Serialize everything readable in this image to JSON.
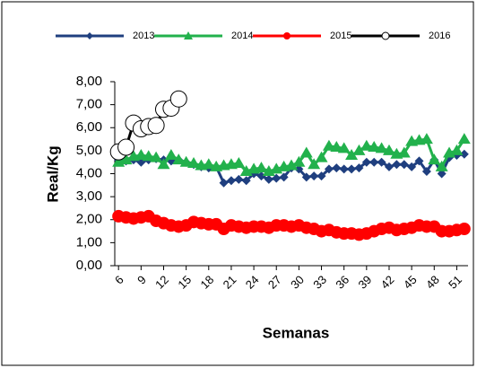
{
  "chart_data": {
    "type": "line",
    "y_label": "Real/Kg",
    "x_label": "Semanas",
    "legend": "top",
    "grid": false,
    "x": [
      6,
      7,
      8,
      9,
      10,
      11,
      12,
      13,
      14,
      15,
      16,
      17,
      18,
      19,
      20,
      21,
      22,
      23,
      24,
      25,
      26,
      27,
      28,
      29,
      30,
      31,
      32,
      33,
      34,
      35,
      36,
      37,
      38,
      39,
      40,
      41,
      42,
      43,
      44,
      45,
      46,
      47,
      48,
      49,
      50,
      51,
      52
    ],
    "xlim": [
      5.5,
      52.5
    ],
    "xticks": [
      6,
      9,
      12,
      15,
      18,
      21,
      24,
      27,
      30,
      33,
      36,
      39,
      42,
      45,
      48,
      51
    ],
    "ylim": [
      0,
      8
    ],
    "yticks": [
      {
        "value": 0,
        "label": "0,00"
      },
      {
        "value": 1,
        "label": "1,00"
      },
      {
        "value": 2,
        "label": "2,00"
      },
      {
        "value": 3,
        "label": "3,00"
      },
      {
        "value": 4,
        "label": "4,00"
      },
      {
        "value": 5,
        "label": "5,00"
      },
      {
        "value": 6,
        "label": "6,00"
      },
      {
        "value": 7,
        "label": "7,00"
      },
      {
        "value": 8,
        "label": "8,00"
      }
    ],
    "series": [
      {
        "name": "2013",
        "color": "#1f3f7f",
        "marker": "diamond",
        "values": [
          4.6,
          4.55,
          4.6,
          4.5,
          4.6,
          4.65,
          4.6,
          4.55,
          4.6,
          4.5,
          4.4,
          4.3,
          4.25,
          4.3,
          3.6,
          3.7,
          3.75,
          3.7,
          4.0,
          3.9,
          3.75,
          3.8,
          3.85,
          4.25,
          4.2,
          3.85,
          3.9,
          3.9,
          4.2,
          4.25,
          4.2,
          4.2,
          4.25,
          4.5,
          4.5,
          4.5,
          4.3,
          4.4,
          4.4,
          4.3,
          4.55,
          4.1,
          4.6,
          4.0,
          4.7,
          4.8,
          4.85
        ]
      },
      {
        "name": "2014",
        "color": "#22b14c",
        "marker": "triangle",
        "values": [
          4.5,
          4.6,
          4.75,
          4.8,
          4.75,
          4.7,
          4.4,
          4.8,
          4.6,
          4.5,
          4.45,
          4.35,
          4.4,
          4.3,
          4.35,
          4.4,
          4.45,
          4.1,
          4.2,
          4.25,
          4.1,
          4.2,
          4.3,
          4.35,
          4.5,
          4.9,
          4.4,
          4.7,
          5.2,
          5.15,
          5.1,
          4.8,
          5.0,
          5.2,
          5.15,
          5.1,
          5.0,
          4.85,
          4.9,
          5.4,
          5.45,
          5.5,
          4.6,
          4.3,
          4.9,
          5.0,
          5.5
        ]
      },
      {
        "name": "2015",
        "color": "#ff0000",
        "marker": "circle",
        "values": [
          2.15,
          2.1,
          2.05,
          2.1,
          2.15,
          1.95,
          1.85,
          1.75,
          1.7,
          1.75,
          1.9,
          1.85,
          1.8,
          1.8,
          1.6,
          1.75,
          1.7,
          1.65,
          1.7,
          1.7,
          1.65,
          1.75,
          1.75,
          1.7,
          1.75,
          1.65,
          1.6,
          1.5,
          1.55,
          1.45,
          1.4,
          1.4,
          1.35,
          1.4,
          1.5,
          1.6,
          1.65,
          1.55,
          1.6,
          1.65,
          1.75,
          1.7,
          1.7,
          1.5,
          1.5,
          1.55,
          1.6
        ]
      },
      {
        "name": "2016",
        "color": "#000000",
        "marker": "open-circle",
        "values": [
          4.95,
          5.15,
          6.2,
          5.95,
          6.05,
          6.1,
          6.8,
          6.85,
          7.25,
          null,
          null,
          null,
          null,
          null,
          null,
          null,
          null,
          null,
          null,
          null,
          null,
          null,
          null,
          null,
          null,
          null,
          null,
          null,
          null,
          null,
          null,
          null,
          null,
          null,
          null,
          null,
          null,
          null,
          null,
          null,
          null,
          null,
          null,
          null,
          null,
          null,
          null
        ]
      }
    ]
  }
}
